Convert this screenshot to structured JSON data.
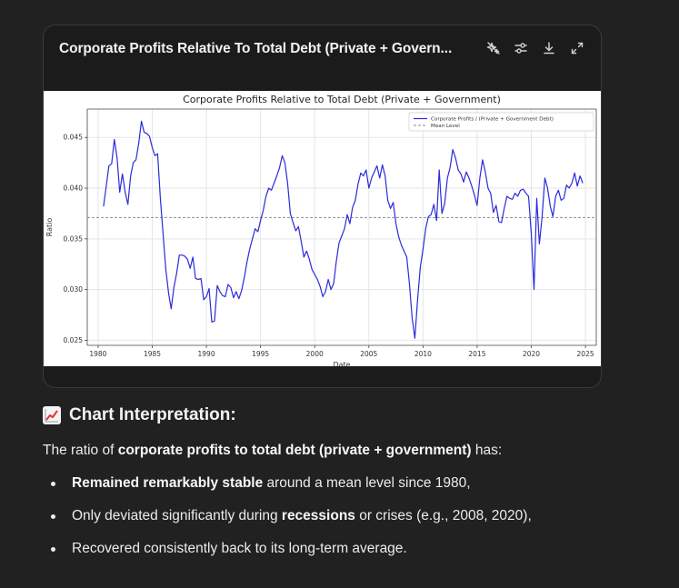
{
  "card": {
    "title": "Corporate Profits Relative To Total Debt (Private + Govern...",
    "toolbar_icons": [
      "sparkle-off-icon",
      "sliders-icon",
      "download-icon",
      "expand-icon"
    ]
  },
  "chart_data": {
    "type": "line",
    "title": "Corporate Profits Relative to Total Debt (Private + Government)",
    "xlabel": "Date",
    "ylabel": "Ratio",
    "xlim": [
      1979,
      2026
    ],
    "ylim": [
      0.0245,
      0.0478
    ],
    "x_ticks": [
      1980,
      1985,
      1990,
      1995,
      2000,
      2005,
      2010,
      2015,
      2020,
      2025
    ],
    "y_ticks": [
      "0.025",
      "0.030",
      "0.035",
      "0.040",
      "0.045"
    ],
    "legend_position": "top-right",
    "grid": true,
    "series": [
      {
        "name": "Corporate Profits / (Private + Government Debt)",
        "color": "#2b2bdb",
        "style": "solid",
        "x": [
          1980.5,
          1980.75,
          1981,
          1981.25,
          1981.5,
          1981.75,
          1982,
          1982.25,
          1982.5,
          1982.75,
          1983,
          1983.25,
          1983.5,
          1983.75,
          1984,
          1984.25,
          1984.5,
          1984.75,
          1985,
          1985.25,
          1985.5,
          1985.75,
          1986,
          1986.25,
          1986.5,
          1986.75,
          1987,
          1987.25,
          1987.5,
          1987.75,
          1988,
          1988.25,
          1988.5,
          1988.75,
          1989,
          1989.25,
          1989.5,
          1989.75,
          1990,
          1990.25,
          1990.5,
          1990.75,
          1991,
          1991.25,
          1991.5,
          1991.75,
          1992,
          1992.25,
          1992.5,
          1992.75,
          1993,
          1993.25,
          1993.5,
          1993.75,
          1994,
          1994.25,
          1994.5,
          1994.75,
          1995,
          1995.25,
          1995.5,
          1995.75,
          1996,
          1996.25,
          1996.5,
          1996.75,
          1997,
          1997.25,
          1997.5,
          1997.75,
          1998,
          1998.25,
          1998.5,
          1998.75,
          1999,
          1999.25,
          1999.5,
          1999.75,
          2000,
          2000.25,
          2000.5,
          2000.75,
          2001,
          2001.25,
          2001.5,
          2001.75,
          2002,
          2002.25,
          2002.5,
          2002.75,
          2003,
          2003.25,
          2003.5,
          2003.75,
          2004,
          2004.25,
          2004.5,
          2004.75,
          2005,
          2005.25,
          2005.5,
          2005.75,
          2006,
          2006.25,
          2006.5,
          2006.75,
          2007,
          2007.25,
          2007.5,
          2007.75,
          2008,
          2008.25,
          2008.5,
          2008.75,
          2009,
          2009.25,
          2009.5,
          2009.75,
          2010,
          2010.25,
          2010.5,
          2010.75,
          2011,
          2011.25,
          2011.5,
          2011.75,
          2012,
          2012.25,
          2012.5,
          2012.75,
          2013,
          2013.25,
          2013.5,
          2013.75,
          2014,
          2014.25,
          2014.5,
          2014.75,
          2015,
          2015.25,
          2015.5,
          2015.75,
          2016,
          2016.25,
          2016.5,
          2016.75,
          2017,
          2017.25,
          2017.5,
          2017.75,
          2018,
          2018.25,
          2018.5,
          2018.75,
          2019,
          2019.25,
          2019.5,
          2019.75,
          2020,
          2020.25,
          2020.5,
          2020.75,
          2021,
          2021.25,
          2021.5,
          2021.75,
          2022,
          2022.25,
          2022.5,
          2022.75,
          2023,
          2023.25,
          2023.5,
          2023.75,
          2024,
          2024.25,
          2024.5,
          2024.75
        ],
        "y": [
          0.0382,
          0.0402,
          0.0422,
          0.0424,
          0.0448,
          0.043,
          0.0396,
          0.0414,
          0.0396,
          0.0384,
          0.0412,
          0.0425,
          0.0428,
          0.0444,
          0.0466,
          0.0455,
          0.0454,
          0.0451,
          0.044,
          0.0432,
          0.0434,
          0.039,
          0.0355,
          0.032,
          0.0297,
          0.0281,
          0.0302,
          0.0316,
          0.0334,
          0.0334,
          0.0333,
          0.033,
          0.0321,
          0.0332,
          0.0311,
          0.031,
          0.0311,
          0.029,
          0.0293,
          0.0301,
          0.0268,
          0.0269,
          0.0304,
          0.0298,
          0.0294,
          0.0293,
          0.0305,
          0.0302,
          0.0292,
          0.0298,
          0.0291,
          0.0299,
          0.0312,
          0.0327,
          0.034,
          0.035,
          0.036,
          0.0357,
          0.0368,
          0.0378,
          0.0392,
          0.04,
          0.0398,
          0.0405,
          0.0412,
          0.042,
          0.0432,
          0.0425,
          0.0405,
          0.0375,
          0.0366,
          0.0358,
          0.0362,
          0.0348,
          0.0332,
          0.0338,
          0.033,
          0.032,
          0.0315,
          0.031,
          0.0303,
          0.0293,
          0.0298,
          0.031,
          0.03,
          0.0306,
          0.0328,
          0.0346,
          0.0353,
          0.036,
          0.0374,
          0.0365,
          0.0381,
          0.0388,
          0.0404,
          0.0415,
          0.0412,
          0.0418,
          0.04,
          0.041,
          0.0416,
          0.0422,
          0.041,
          0.0423,
          0.0412,
          0.0388,
          0.038,
          0.0386,
          0.0365,
          0.0352,
          0.0344,
          0.0338,
          0.0332,
          0.0305,
          0.0272,
          0.0252,
          0.029,
          0.0322,
          0.034,
          0.036,
          0.0372,
          0.0374,
          0.0384,
          0.0368,
          0.0418,
          0.0375,
          0.0385,
          0.041,
          0.042,
          0.0438,
          0.043,
          0.0418,
          0.0414,
          0.0406,
          0.0416,
          0.041,
          0.0402,
          0.0393,
          0.0383,
          0.041,
          0.0428,
          0.0416,
          0.04,
          0.0395,
          0.0376,
          0.0383,
          0.0367,
          0.0366,
          0.038,
          0.0392,
          0.039,
          0.0389,
          0.0395,
          0.0392,
          0.0398,
          0.0399,
          0.0395,
          0.0392,
          0.0355,
          0.03,
          0.039,
          0.0345,
          0.0372,
          0.041,
          0.04,
          0.0382,
          0.0372,
          0.0392,
          0.0398,
          0.0388,
          0.039,
          0.0403,
          0.04,
          0.0405,
          0.0415,
          0.0402,
          0.0412,
          0.0405
        ]
      },
      {
        "name": "Mean Level",
        "color": "#8c8c8c",
        "style": "dashed",
        "y_const": 0.0371
      }
    ]
  },
  "explanation": {
    "heading": "Chart Interpretation:",
    "intro_pre": "The ratio of ",
    "intro_bold": "corporate profits to total debt (private + government)",
    "intro_post": " has:",
    "bullet1_bold": "Remained remarkably stable",
    "bullet1_rest": " around a mean level since 1980,",
    "bullet2_pre": "Only deviated significantly during ",
    "bullet2_bold": "recessions",
    "bullet2_post": " or crises (e.g., 2008, 2020),",
    "bullet3": "Recovered consistently back to its long-term average."
  }
}
